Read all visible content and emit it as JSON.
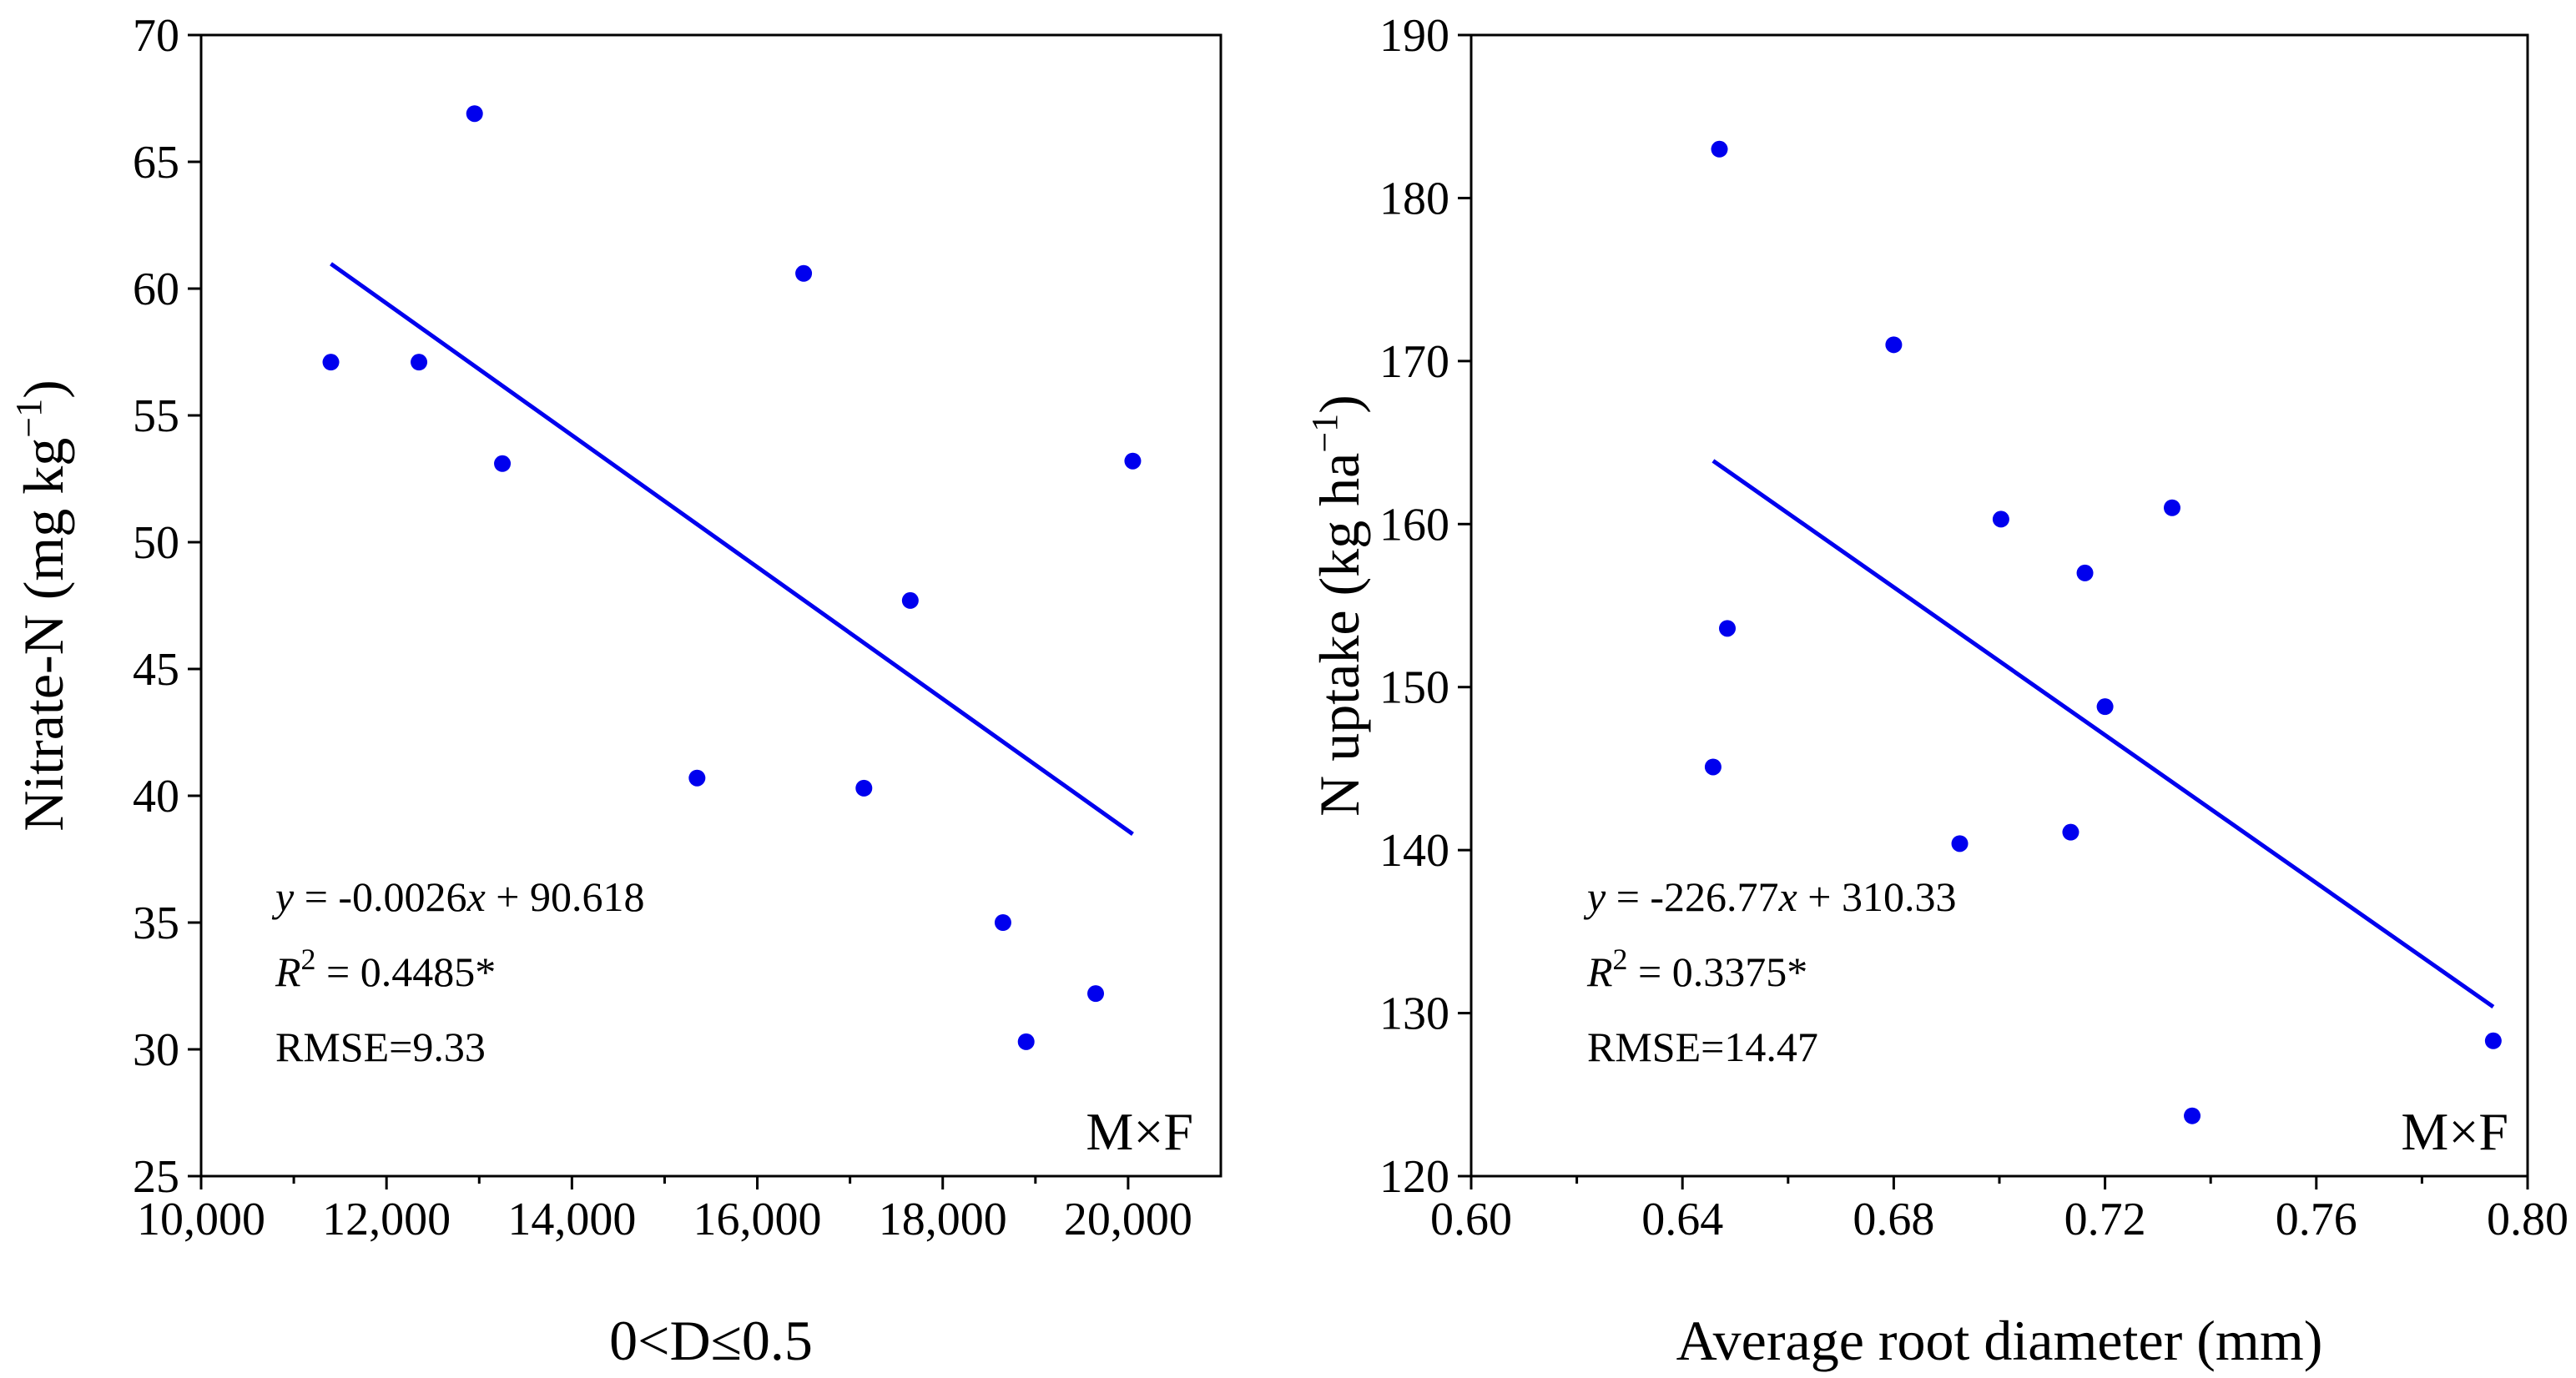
{
  "chart_data": [
    {
      "type": "scatter",
      "panel": "left",
      "xlabel": "0<D≤0.5",
      "ylabel": "Nitrate-N (mg kg",
      "ylabel_sup": "−1",
      "ylabel_close": ")",
      "xlim": [
        10000,
        21000
      ],
      "ylim": [
        25,
        70
      ],
      "xticks": [
        10000,
        12000,
        14000,
        16000,
        18000,
        20000
      ],
      "xtick_labels": [
        "10,000",
        "12,000",
        "14,000",
        "16,000",
        "18,000",
        "20,000"
      ],
      "yticks": [
        25,
        30,
        35,
        40,
        45,
        50,
        55,
        60,
        65,
        70
      ],
      "ytick_labels": [
        "25",
        "30",
        "35",
        "40",
        "45",
        "50",
        "55",
        "60",
        "65",
        "70"
      ],
      "points": [
        {
          "x": 11400,
          "y": 57.1
        },
        {
          "x": 12350,
          "y": 57.1
        },
        {
          "x": 12950,
          "y": 66.9
        },
        {
          "x": 13250,
          "y": 53.1
        },
        {
          "x": 15350,
          "y": 40.7
        },
        {
          "x": 16500,
          "y": 60.6
        },
        {
          "x": 17150,
          "y": 40.3
        },
        {
          "x": 17650,
          "y": 47.7
        },
        {
          "x": 18650,
          "y": 35.0
        },
        {
          "x": 18900,
          "y": 30.3
        },
        {
          "x": 19650,
          "y": 32.2
        },
        {
          "x": 20050,
          "y": 53.2
        }
      ],
      "fit": {
        "slope": -0.0026,
        "intercept": 90.618,
        "x_range": [
          11400,
          20050
        ]
      },
      "equation": {
        "y": "y",
        "eq": " = -0.0026",
        "x": "x",
        "rest": " + 90.618"
      },
      "r2": {
        "R": "R",
        "sup": "2",
        "rest": " = 0.4485*"
      },
      "rmse": "RMSE=9.33",
      "tag": "M×F",
      "color": "#0000ee"
    },
    {
      "type": "scatter",
      "panel": "right",
      "xlabel": "Average root diameter (mm)",
      "ylabel": "N uptake (kg ha",
      "ylabel_sup": "−1",
      "ylabel_close": ")",
      "xlim": [
        0.6,
        0.8
      ],
      "ylim": [
        120,
        190
      ],
      "xticks": [
        0.6,
        0.64,
        0.68,
        0.72,
        0.76,
        0.8
      ],
      "xtick_labels": [
        "0.60",
        "0.64",
        "0.68",
        "0.72",
        "0.76",
        "0.80"
      ],
      "yticks": [
        120,
        130,
        140,
        150,
        160,
        170,
        180,
        190
      ],
      "ytick_labels": [
        "120",
        "130",
        "140",
        "150",
        "160",
        "170",
        "180",
        "190"
      ],
      "points": [
        {
          "x": 0.6458,
          "y": 145.1
        },
        {
          "x": 0.647,
          "y": 183.0
        },
        {
          "x": 0.6485,
          "y": 153.6
        },
        {
          "x": 0.68,
          "y": 171.0
        },
        {
          "x": 0.6925,
          "y": 140.4
        },
        {
          "x": 0.7003,
          "y": 160.3
        },
        {
          "x": 0.7135,
          "y": 141.1
        },
        {
          "x": 0.7162,
          "y": 157.0
        },
        {
          "x": 0.72,
          "y": 148.8
        },
        {
          "x": 0.7327,
          "y": 161.0
        },
        {
          "x": 0.7365,
          "y": 123.7
        },
        {
          "x": 0.7935,
          "y": 128.3
        }
      ],
      "fit": {
        "slope": -226.77,
        "intercept": 310.33,
        "x_range": [
          0.6458,
          0.7935
        ]
      },
      "equation": {
        "y": "y",
        "eq": " = -226.77",
        "x": "x",
        "rest": " + 310.33"
      },
      "r2": {
        "R": "R",
        "sup": "2",
        "rest": " = 0.3375*"
      },
      "rmse": "RMSE=14.47",
      "tag": "M×F",
      "color": "#0000ee"
    }
  ]
}
